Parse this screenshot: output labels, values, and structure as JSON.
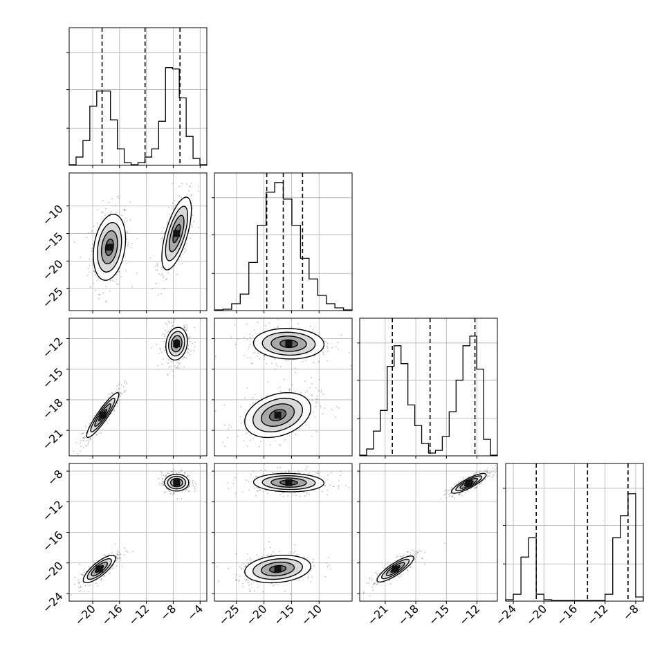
{
  "chart_data": {
    "type": "corner",
    "grid": true,
    "quantile_line_style": "dashed",
    "parameters": [
      {
        "index": 0,
        "range": [
          -23.5,
          -3.0
        ],
        "ticks": [
          -20,
          -16,
          -12,
          -8,
          -4
        ],
        "tick_labels": [
          "−20",
          "−16",
          "−12",
          "−8",
          "−4"
        ],
        "quantiles": [
          -18.6,
          -12.2,
          -7.0
        ],
        "histogram": [
          0.005,
          0.06,
          0.18,
          0.43,
          0.54,
          0.54,
          0.33,
          0.12,
          0.02,
          0.005,
          0.02,
          0.06,
          0.12,
          0.32,
          0.71,
          0.7,
          0.49,
          0.21,
          0.05,
          0.005
        ]
      },
      {
        "index": 1,
        "range": [
          -29.0,
          -4.0
        ],
        "ticks": [
          -25,
          -20,
          -15,
          -10
        ],
        "tick_labels": [
          "−25",
          "−20",
          "−15",
          "−10"
        ],
        "quantiles": [
          -19.5,
          -16.5,
          -13.0
        ],
        "histogram": [
          0.005,
          0.01,
          0.05,
          0.12,
          0.35,
          0.62,
          0.86,
          0.93,
          0.81,
          0.62,
          0.38,
          0.23,
          0.11,
          0.05,
          0.02,
          0.005
        ]
      },
      {
        "index": 2,
        "range": [
          -23.5,
          -10.0
        ],
        "ticks": [
          -21,
          -18,
          -15,
          -12
        ],
        "tick_labels": [
          "−21",
          "−18",
          "−15",
          "−12"
        ],
        "quantiles": [
          -20.3,
          -16.6,
          -12.2
        ],
        "histogram": [
          0.005,
          0.05,
          0.18,
          0.33,
          0.65,
          0.8,
          0.67,
          0.37,
          0.22,
          0.09,
          0.02,
          0.04,
          0.14,
          0.32,
          0.55,
          0.8,
          0.87,
          0.63,
          0.12,
          0.005
        ]
      },
      {
        "index": 3,
        "range": [
          -25.0,
          -7.0
        ],
        "ticks": [
          -24,
          -20,
          -16,
          -12,
          -8
        ],
        "tick_labels": [
          "−24",
          "−20",
          "−16",
          "−12",
          "−8"
        ],
        "quantiles": [
          -21.0,
          -14.3,
          -9.0
        ],
        "histogram": [
          0.01,
          0.05,
          0.32,
          0.46,
          0.05,
          0.01,
          0.005,
          0.005,
          0.005,
          0.005,
          0.005,
          0.005,
          0.005,
          0.05,
          0.46,
          0.62,
          0.78,
          0.03
        ]
      }
    ],
    "histogram_row_tick_fractions": [
      0.27,
      0.55,
      0.82
    ],
    "pair_modes": [
      {
        "row": 1,
        "col": 0,
        "modes": [
          {
            "cx": -17.5,
            "cy": -17.5,
            "sx": 1.2,
            "sy": 3.0,
            "rho": 0.25
          },
          {
            "cx": -7.5,
            "cy": -15.0,
            "sx": 1.1,
            "sy": 3.3,
            "rho": 0.65
          }
        ]
      },
      {
        "row": 2,
        "col": 0,
        "modes": [
          {
            "cx": -18.5,
            "cy": -19.5,
            "sx": 1.2,
            "sy": 1.1,
            "rho": 0.92
          },
          {
            "cx": -7.5,
            "cy": -12.5,
            "sx": 0.8,
            "sy": 0.8,
            "rho": 0.15
          }
        ]
      },
      {
        "row": 2,
        "col": 1,
        "modes": [
          {
            "cx": -17.5,
            "cy": -19.5,
            "sx": 3.0,
            "sy": 1.1,
            "rho": 0.3
          },
          {
            "cx": -15.5,
            "cy": -12.5,
            "sx": 3.2,
            "sy": 0.75,
            "rho": -0.05
          }
        ]
      },
      {
        "row": 3,
        "col": 0,
        "modes": [
          {
            "cx": -19.0,
            "cy": -20.8,
            "sx": 1.2,
            "sy": 0.9,
            "rho": 0.8
          },
          {
            "cx": -7.5,
            "cy": -9.5,
            "sx": 0.9,
            "sy": 0.55,
            "rho": 0.0
          }
        ]
      },
      {
        "row": 3,
        "col": 1,
        "modes": [
          {
            "cx": -17.5,
            "cy": -20.8,
            "sx": 3.0,
            "sy": 0.9,
            "rho": 0.2
          },
          {
            "cx": -15.5,
            "cy": -9.5,
            "sx": 3.2,
            "sy": 0.6,
            "rho": -0.05
          }
        ]
      },
      {
        "row": 3,
        "col": 2,
        "modes": [
          {
            "cx": -20.0,
            "cy": -20.8,
            "sx": 0.9,
            "sy": 0.85,
            "rho": 0.85
          },
          {
            "cx": -12.8,
            "cy": -9.6,
            "sx": 0.85,
            "sy": 0.65,
            "rho": 0.85
          }
        ]
      }
    ],
    "contour_levels_sigma": [
      0.5,
      1.0,
      1.5,
      2.0
    ]
  }
}
